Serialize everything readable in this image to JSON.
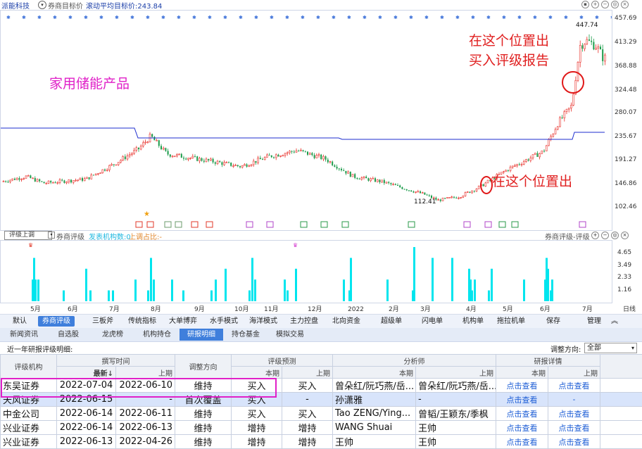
{
  "header": {
    "stock_name": "派能科技",
    "circle_icon": "▾",
    "target_label": "券商目标价",
    "rolling_avg": "滚动平均目标价:243.84",
    "ctrl_icons": [
      "▪",
      "+",
      "−",
      "◎",
      "×"
    ]
  },
  "main_chart": {
    "price_axis": [
      "457.69",
      "413.29",
      "368.88",
      "324.48",
      "280.07",
      "235.67",
      "191.27",
      "146.86",
      "102.46"
    ],
    "high_label": "447.74",
    "low_label": "112.41",
    "annotation_product": "家用储能产品",
    "annotation_buy_line1": "在这个位置出",
    "annotation_buy_line2": "买入评级报告",
    "annotation_early": "在这个位置出",
    "colors": {
      "up": "#e8302a",
      "down": "#1b9b4a",
      "avg_line": "#1e2ecf",
      "annotation_red": "#e01818",
      "annotation_magenta": "#e020c8"
    }
  },
  "sub_chart": {
    "dropdown_value": "评级上调",
    "indicator_name": "券商评级",
    "org_count": "发表机构数:0",
    "up_ratio": "上调占比:-",
    "right_title": "券商评级-评级",
    "y_axis": [
      "4.65",
      "3.49",
      "2.33",
      "1.16"
    ],
    "months": [
      "5月",
      "6月",
      "7月",
      "8月",
      "9月",
      "10月",
      "11月",
      "12月",
      "2022",
      "2月",
      "3月",
      "4月",
      "5月",
      "6月",
      "7月"
    ],
    "period": "日线",
    "bar_color": "#00e5ee",
    "bars": [
      2,
      4,
      2,
      2,
      1,
      3,
      1,
      1,
      1,
      2,
      1,
      4,
      2,
      2,
      1,
      1,
      2,
      3,
      1,
      4,
      2,
      2,
      1,
      3,
      2,
      1,
      4,
      2,
      1,
      5,
      4,
      4,
      3,
      2,
      1,
      2,
      1,
      3,
      2,
      2,
      4,
      3,
      1,
      2
    ]
  },
  "function_tabs": [
    "默认",
    "券商评级",
    "三板斧",
    "传统指标",
    "大单博弈",
    "水手模式",
    "海洋模式",
    "主力控盘",
    "北向资金",
    "超级单",
    "闪电单",
    "机构单",
    "拖拉机单",
    "保存",
    "管理"
  ],
  "function_tabs_active": "券商评级",
  "info_tabs": [
    "新闻资讯",
    "自选股",
    "龙虎榜",
    "机构持仓",
    "研报明细",
    "持仓基金",
    "模拟交易"
  ],
  "info_tabs_active": "研报明细",
  "table_section": {
    "title": "近一年研报评级明细:",
    "direction_label": "调整方向:",
    "direction_value": "全部",
    "headers": {
      "org": "评级机构",
      "time": "撰写时间",
      "latest": "最新↓",
      "prev": "上期",
      "dir": "调整方向",
      "rating": "评级预测",
      "current": "本期",
      "last": "上期",
      "analyst": "分析师",
      "detail": "研报详情"
    },
    "rows": [
      {
        "org": "东吴证券",
        "latest": "2022-07-04",
        "prev": "2022-06-10",
        "dir": "维持",
        "cur": "买入",
        "last": "买入",
        "a_cur": "曾朵红/阮巧燕/岳...",
        "a_last": "曾朵红/阮巧燕/岳...",
        "d_cur": "点击查看",
        "d_last": "点击查看"
      },
      {
        "org": "天风证券",
        "latest": "2022-06-15",
        "prev": "-",
        "dir": "首次覆盖",
        "cur": "买入",
        "last": "-",
        "a_cur": "孙潇雅",
        "a_last": "-",
        "d_cur": "点击查看",
        "d_last": "-"
      },
      {
        "org": "中金公司",
        "latest": "2022-06-14",
        "prev": "2022-06-11",
        "dir": "维持",
        "cur": "买入",
        "last": "买入",
        "a_cur": "Tao ZENG/Ying...",
        "a_last": "曾韬/王颖东/季枫",
        "d_cur": "点击查看",
        "d_last": "点击查看"
      },
      {
        "org": "兴业证券",
        "latest": "2022-06-14",
        "prev": "2022-06-13",
        "dir": "维持",
        "cur": "增持",
        "last": "增持",
        "a_cur": "WANG Shuai",
        "a_last": "王帅",
        "d_cur": "点击查看",
        "d_last": "点击查看"
      },
      {
        "org": "兴业证券",
        "latest": "2022-06-13",
        "prev": "2022-04-26",
        "dir": "维持",
        "cur": "增持",
        "last": "增持",
        "a_cur": "王帅",
        "a_last": "王帅",
        "d_cur": "点击查看",
        "d_last": "点击查看"
      }
    ]
  }
}
